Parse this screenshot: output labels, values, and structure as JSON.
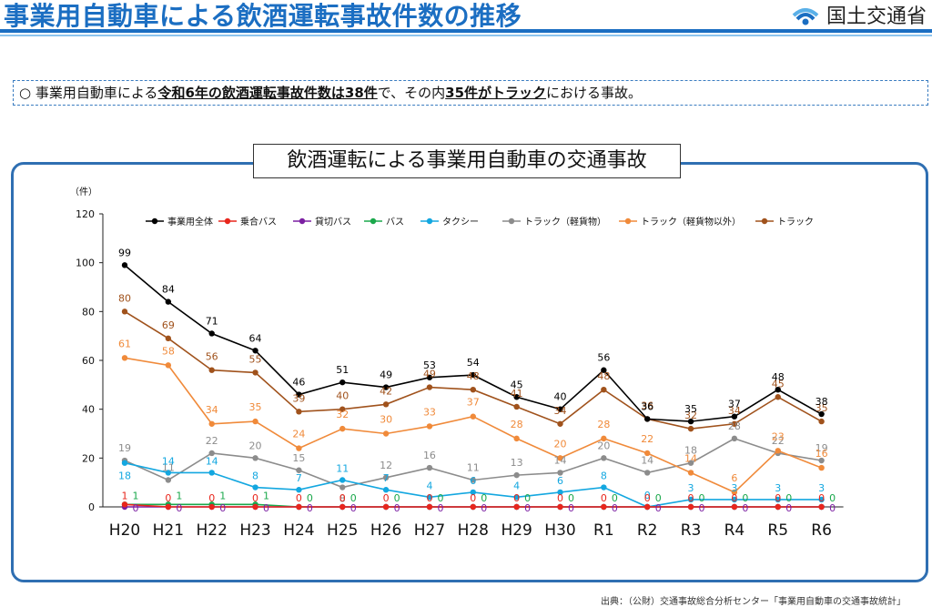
{
  "header": {
    "title": "事業用自動車による飲酒運転事故件数の推移",
    "logo_text": "国土交通省"
  },
  "summary": {
    "marker": "○",
    "part1": "事業用自動車による",
    "em1": "令和6年の飲酒運転事故件数は38件",
    "part2": "で、その内",
    "em2": "35件がトラック",
    "part3": "における事故。"
  },
  "source_note": "出典：（公財）交通事故総合分析センター「事業用自動車の交通事故統計」",
  "colors": {
    "title_blue": "#1b6ec2",
    "frame_blue": "#2f6fb2"
  },
  "chart_data": {
    "type": "line",
    "title": "飲酒運転による事業用自動車の交通事故",
    "ylabel": "（件）",
    "xlabel": "",
    "ylim": [
      0,
      120
    ],
    "yticks": [
      0,
      20,
      40,
      60,
      80,
      100,
      120
    ],
    "grid": false,
    "legend_position": "top",
    "categories": [
      "H20",
      "H21",
      "H22",
      "H23",
      "H24",
      "H25",
      "H26",
      "H27",
      "H28",
      "H29",
      "H30",
      "R1",
      "R2",
      "R3",
      "R4",
      "R5",
      "R6"
    ],
    "series": [
      {
        "name": "事業用全体",
        "color": "#000000",
        "values": [
          99,
          84,
          71,
          64,
          46,
          51,
          49,
          53,
          54,
          45,
          40,
          56,
          36,
          35,
          37,
          48,
          38
        ]
      },
      {
        "name": "乗合バス",
        "color": "#e8261c",
        "values": [
          1,
          0,
          0,
          0,
          0,
          0,
          0,
          0,
          0,
          0,
          0,
          0,
          0,
          0,
          0,
          0,
          0
        ]
      },
      {
        "name": "貸切バス",
        "color": "#7b1fa2",
        "values": [
          0,
          0,
          0,
          0,
          0,
          0,
          0,
          0,
          0,
          0,
          0,
          0,
          0,
          0,
          0,
          0,
          0
        ]
      },
      {
        "name": "バス",
        "color": "#1aa84b",
        "values": [
          1,
          1,
          1,
          1,
          0,
          0,
          0,
          0,
          0,
          0,
          0,
          0,
          0,
          0,
          0,
          0,
          0
        ]
      },
      {
        "name": "タクシー",
        "color": "#13a7e0",
        "values": [
          18,
          14,
          14,
          8,
          7,
          11,
          7,
          4,
          6,
          4,
          6,
          8,
          0,
          3,
          3,
          3,
          3
        ]
      },
      {
        "name": "トラック（軽貨物）",
        "color": "#8c8c8c",
        "values": [
          19,
          11,
          22,
          20,
          15,
          8,
          12,
          16,
          11,
          13,
          14,
          20,
          14,
          18,
          28,
          22,
          19
        ]
      },
      {
        "name": "トラック（軽貨物以外）",
        "color": "#f08a3a",
        "values": [
          61,
          58,
          34,
          35,
          24,
          32,
          30,
          33,
          37,
          28,
          20,
          28,
          22,
          14,
          6,
          23,
          16
        ]
      },
      {
        "name": "トラック",
        "color": "#a0521c",
        "values": [
          80,
          69,
          56,
          55,
          39,
          40,
          42,
          49,
          48,
          41,
          34,
          48,
          36,
          32,
          34,
          45,
          35
        ]
      }
    ]
  }
}
